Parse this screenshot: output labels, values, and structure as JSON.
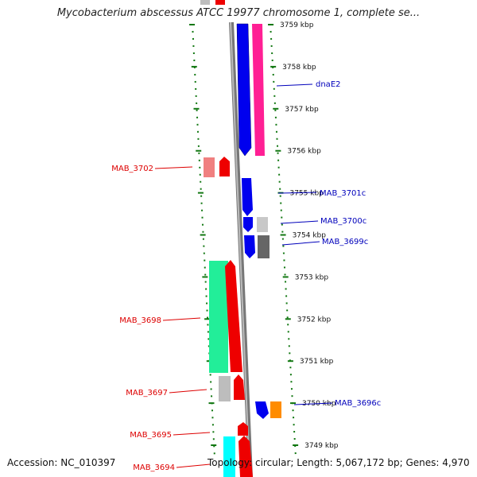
{
  "title": "Mycobacterium abscessus ATCC 19977 chromosome 1, complete se...",
  "footer": {
    "accession": "Accession: NC_010397",
    "topology": "Topology: circular; Length: 5,067,172 bp; Genes: 4,970"
  },
  "ticks": [
    {
      "label": "3759 kbp"
    },
    {
      "label": "3758 kbp"
    },
    {
      "label": "3757 kbp"
    },
    {
      "label": "3756 kbp"
    },
    {
      "label": "3755 kbp"
    },
    {
      "label": "3754 kbp"
    },
    {
      "label": "3753 kbp"
    },
    {
      "label": "3752 kbp"
    },
    {
      "label": "3751 kbp"
    },
    {
      "label": "3750 kbp"
    },
    {
      "label": "3749 kbp"
    }
  ],
  "gene_labels_left": [
    "MAB_3702",
    "MAB_3698",
    "MAB_3697",
    "MAB_3695",
    "MAB_3694"
  ],
  "gene_labels_right": [
    "dnaE2",
    "MAB_3701c",
    "MAB_3700c",
    "MAB_3699c",
    "MAB_3696c"
  ],
  "colors": {
    "forward_label": "#dd0000",
    "reverse_label": "#0000bb",
    "ruler": "#117711",
    "backbone": "#888888"
  }
}
